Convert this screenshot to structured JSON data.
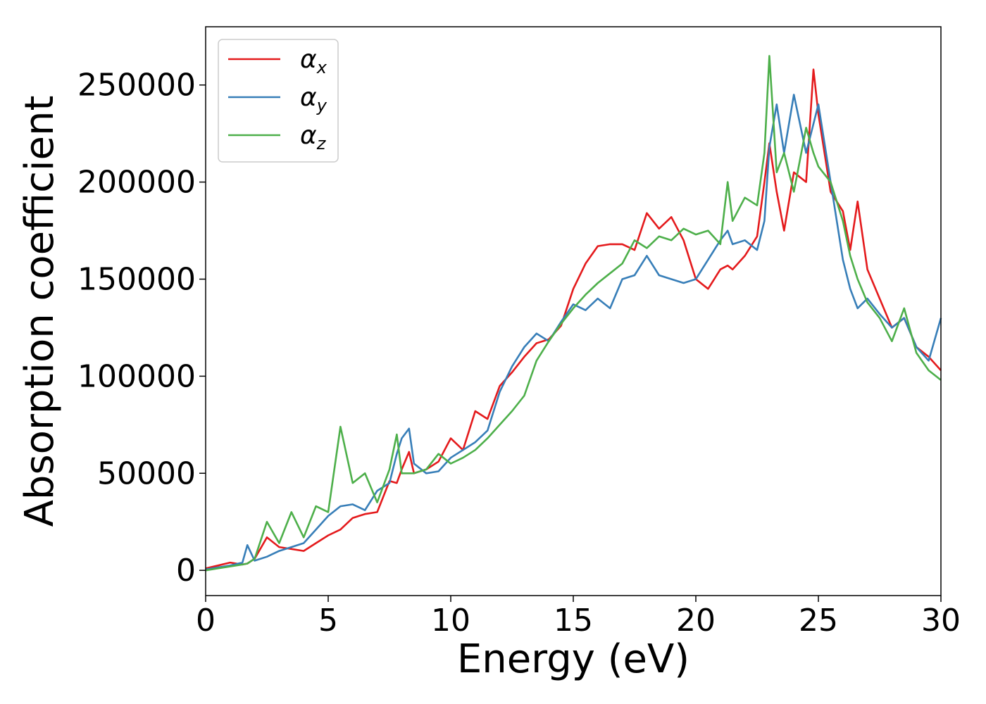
{
  "chart_data": {
    "type": "line",
    "xlabel": "Energy (eV)",
    "ylabel": "Absorption coefficient",
    "xlim": [
      0,
      30
    ],
    "ylim": [
      -13000,
      280000
    ],
    "xticks": [
      "0",
      "5",
      "10",
      "15",
      "20",
      "25",
      "30"
    ],
    "yticks": [
      "0",
      "50000",
      "100000",
      "150000",
      "200000",
      "250000"
    ],
    "grid": false,
    "legend_position": "top-left",
    "x": [
      0,
      0.5,
      1,
      1.5,
      1.7,
      2,
      2.5,
      3,
      3.5,
      4,
      4.5,
      5,
      5.5,
      6,
      6.5,
      7,
      7.5,
      7.8,
      8,
      8.3,
      8.5,
      9,
      9.5,
      10,
      10.5,
      11,
      11.5,
      12,
      12.5,
      13,
      13.5,
      14,
      14.5,
      15,
      15.5,
      16,
      16.5,
      17,
      17.5,
      18,
      18.5,
      19,
      19.5,
      20,
      20.5,
      21,
      21.3,
      21.5,
      22,
      22.5,
      22.8,
      23,
      23.3,
      23.6,
      24,
      24.5,
      24.8,
      25,
      25.5,
      26,
      26.3,
      26.6,
      27,
      27.5,
      28,
      28.5,
      29,
      29.5,
      30
    ],
    "series": [
      {
        "name": "α_x",
        "color": "#e41a1c",
        "values": [
          1000,
          2500,
          4000,
          3000,
          3500,
          6000,
          17000,
          12000,
          11000,
          10000,
          14000,
          18000,
          21000,
          27000,
          29000,
          30000,
          46000,
          45000,
          52000,
          61000,
          50000,
          52000,
          56000,
          68000,
          62000,
          82000,
          78000,
          95000,
          102000,
          110000,
          117000,
          119000,
          126000,
          145000,
          158000,
          167000,
          168000,
          168000,
          165000,
          184000,
          176000,
          182000,
          170000,
          150000,
          145000,
          155000,
          157000,
          155000,
          162000,
          172000,
          200000,
          220000,
          195000,
          175000,
          205000,
          200000,
          258000,
          235000,
          195000,
          185000,
          165000,
          190000,
          155000,
          140000,
          125000,
          130000,
          115000,
          110000,
          103000
        ]
      },
      {
        "name": "α_y",
        "color": "#377eb8",
        "values": [
          500,
          1500,
          2500,
          4000,
          13000,
          5000,
          7000,
          10000,
          12000,
          14000,
          21000,
          28000,
          33000,
          34000,
          31000,
          41000,
          45000,
          60000,
          68000,
          73000,
          55000,
          50000,
          51000,
          58000,
          62000,
          66000,
          72000,
          92000,
          105000,
          115000,
          122000,
          118000,
          128000,
          137000,
          134000,
          140000,
          135000,
          150000,
          152000,
          162000,
          152000,
          150000,
          148000,
          150000,
          160000,
          170000,
          175000,
          168000,
          170000,
          165000,
          180000,
          218000,
          240000,
          215000,
          245000,
          215000,
          230000,
          240000,
          200000,
          160000,
          145000,
          135000,
          140000,
          132000,
          125000,
          130000,
          115000,
          108000,
          130000
        ]
      },
      {
        "name": "α_z",
        "color": "#4daf4a",
        "values": [
          0,
          1000,
          2000,
          3000,
          3500,
          6000,
          25000,
          14000,
          30000,
          17000,
          33000,
          30000,
          74000,
          45000,
          50000,
          35000,
          52000,
          70000,
          50000,
          50000,
          50000,
          52000,
          60000,
          55000,
          58000,
          62000,
          68000,
          75000,
          82000,
          90000,
          108000,
          118000,
          127000,
          135000,
          142000,
          148000,
          153000,
          158000,
          170000,
          166000,
          172000,
          170000,
          176000,
          173000,
          175000,
          168000,
          200000,
          180000,
          192000,
          188000,
          215000,
          265000,
          205000,
          215000,
          195000,
          228000,
          215000,
          208000,
          200000,
          180000,
          162000,
          150000,
          138000,
          130000,
          118000,
          135000,
          112000,
          103000,
          98000
        ]
      }
    ]
  },
  "legend": {
    "items": [
      {
        "symbol": "α",
        "subscript": "x",
        "color": "#e41a1c"
      },
      {
        "symbol": "α",
        "subscript": "y",
        "color": "#377eb8"
      },
      {
        "symbol": "α",
        "subscript": "z",
        "color": "#4daf4a"
      }
    ]
  }
}
